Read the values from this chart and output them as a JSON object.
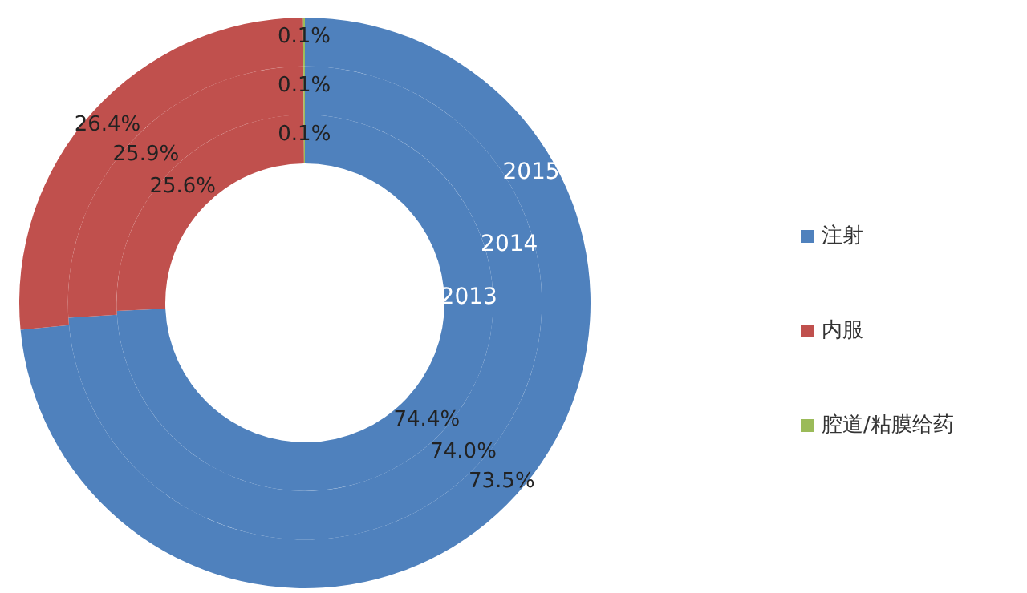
{
  "chart_data": {
    "type": "donut",
    "categories": [
      "注射",
      "内服",
      "腔道/粘膜给药"
    ],
    "colors": [
      "#4f81bd",
      "#c0504d",
      "#9bbb59"
    ],
    "legend": "right",
    "series": [
      {
        "name": "2013",
        "values": [
          74.4,
          25.6,
          0.1
        ],
        "value_labels": [
          "74.4%",
          "25.6%",
          "0.1%"
        ]
      },
      {
        "name": "2014",
        "values": [
          74.0,
          25.9,
          0.1
        ],
        "value_labels": [
          "74.0%",
          "25.9%",
          "0.1%"
        ]
      },
      {
        "name": "2015",
        "values": [
          73.5,
          26.4,
          0.1
        ],
        "value_labels": [
          "73.5%",
          "26.4%",
          "0.1%"
        ]
      }
    ]
  }
}
